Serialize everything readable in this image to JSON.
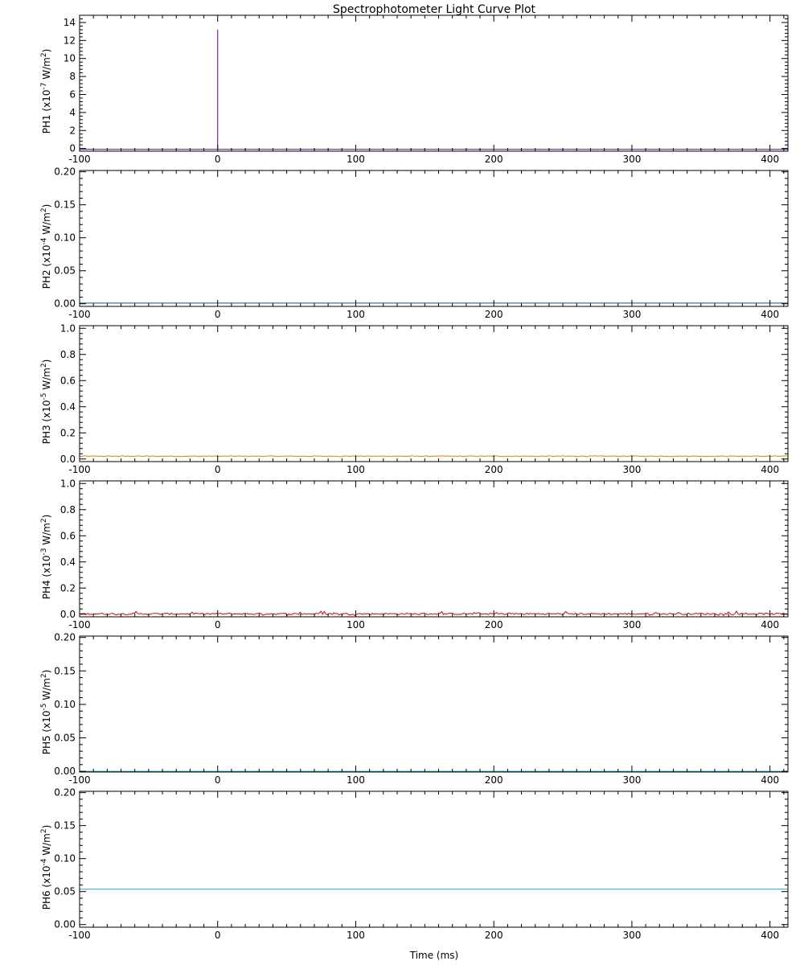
{
  "chart_data": {
    "title": "Spectrophotometer Light Curve Plot",
    "xlabel": "Time (ms)",
    "type": "line",
    "x_range": [
      -100,
      413
    ],
    "x_ticks": [
      -100,
      0,
      100,
      200,
      300,
      400
    ],
    "x_tick_labels": [
      "-100",
      "0",
      "100",
      "200",
      "300",
      "400"
    ],
    "panels": [
      {
        "ylabel": "PH1",
        "yunit": "(x10",
        "yexp": "-7",
        "yunit_tail": " W/m",
        "ysup": "2",
        "ylim": [
          -0.3,
          14.8
        ],
        "yticks": [
          0,
          2,
          4,
          6,
          8,
          10,
          12,
          14
        ],
        "ytick_labels": [
          "0",
          "2",
          "4",
          "6",
          "8",
          "10",
          "12",
          "14"
        ],
        "color": "#5a00a0",
        "baseline": -0.1,
        "noise": 0,
        "spike": {
          "x": 0,
          "y": 13.2
        }
      },
      {
        "ylabel": "PH2",
        "yunit": "(x10",
        "yexp": "-4",
        "yunit_tail": " W/m",
        "ysup": "2",
        "ylim": [
          -0.004,
          0.202
        ],
        "yticks": [
          0,
          0.05,
          0.1,
          0.15,
          0.2
        ],
        "ytick_labels": [
          "0.00",
          "0.05",
          "0.10",
          "0.15",
          "0.20"
        ],
        "color": "#0a5a78",
        "baseline": 0.001,
        "noise": 0
      },
      {
        "ylabel": "PH3",
        "yunit": "(x10",
        "yexp": "-5",
        "yunit_tail": " W/m",
        "ysup": "2",
        "ylim": [
          -0.02,
          1.02
        ],
        "yticks": [
          0,
          0.2,
          0.4,
          0.6,
          0.8,
          1.0
        ],
        "ytick_labels": [
          "0.0",
          "0.2",
          "0.4",
          "0.6",
          "0.8",
          "1.0"
        ],
        "color": "#f08000",
        "baseline": 0.02,
        "noise": 0.006
      },
      {
        "ylabel": "PH4",
        "yunit": "(x10",
        "yexp": "-3",
        "yunit_tail": " W/m",
        "ysup": "2",
        "ylim": [
          -0.02,
          1.02
        ],
        "yticks": [
          0,
          0.2,
          0.4,
          0.6,
          0.8,
          1.0
        ],
        "ytick_labels": [
          "0.0",
          "0.2",
          "0.4",
          "0.6",
          "0.8",
          "1.0"
        ],
        "color": "#e00000",
        "baseline": 0.0,
        "noise": 0.012
      },
      {
        "ylabel": "PH5",
        "yunit": "(x10",
        "yexp": "-5",
        "yunit_tail": " W/m",
        "ysup": "2",
        "ylim": [
          -0.001,
          0.202
        ],
        "yticks": [
          0,
          0.05,
          0.1,
          0.15,
          0.2
        ],
        "ytick_labels": [
          "0.00",
          "0.05",
          "0.10",
          "0.15",
          "0.20"
        ],
        "color": "#00a0b0",
        "baseline": 0.0,
        "noise": 0
      },
      {
        "ylabel": "PH6",
        "yunit": "(x10",
        "yexp": "-4",
        "yunit_tail": " W/m",
        "ysup": "2",
        "ylim": [
          -0.004,
          0.202
        ],
        "yticks": [
          0,
          0.05,
          0.1,
          0.15,
          0.2
        ],
        "ytick_labels": [
          "0.00",
          "0.05",
          "0.10",
          "0.15",
          "0.20"
        ],
        "color": "#2aa0e0",
        "baseline": 0.0535,
        "noise": 0
      }
    ]
  }
}
